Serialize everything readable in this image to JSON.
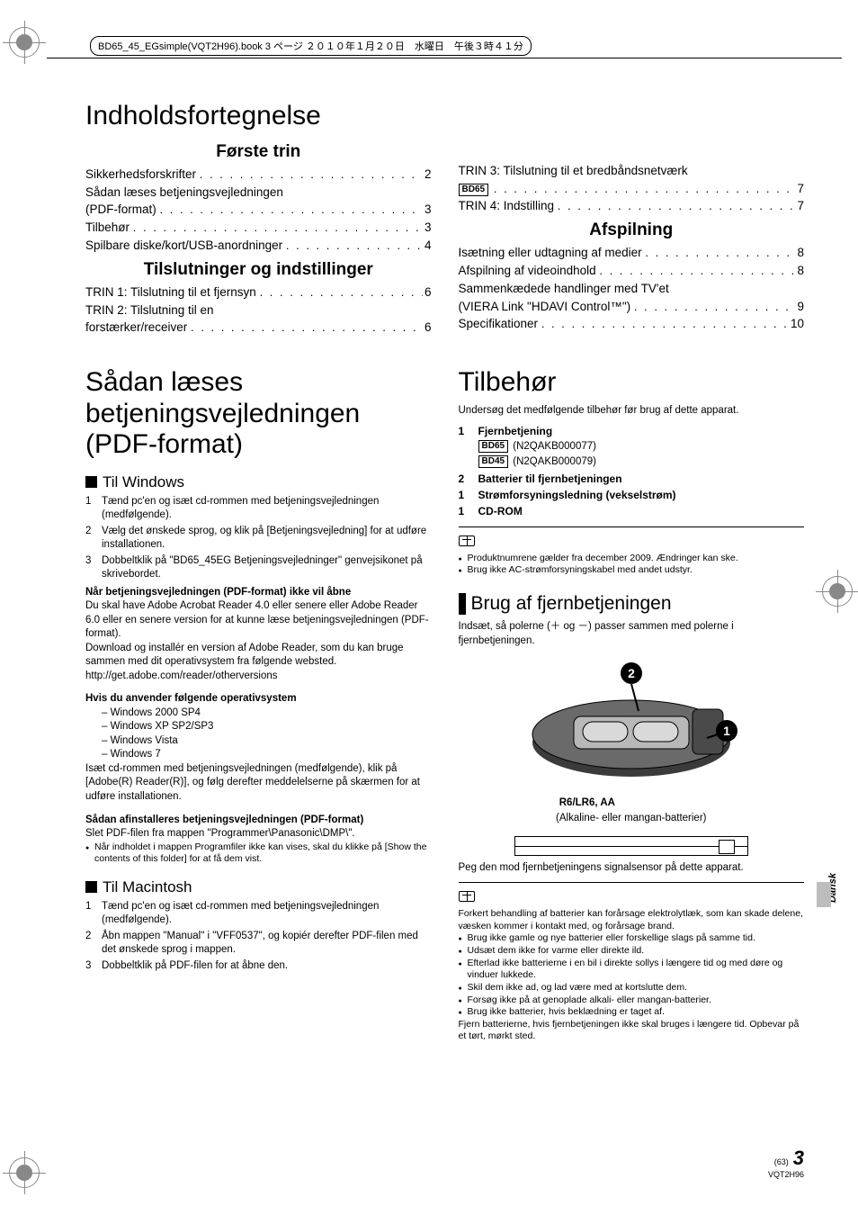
{
  "crop_header": "BD65_45_EGsimple(VQT2H96).book  3 ページ  ２０１０年１月２０日　水曜日　午後３時４１分",
  "main_title": "Indholdsfortegnelse",
  "toc": {
    "sec1_title": "Første trin",
    "sec1": [
      {
        "label": "Sikkerhedsforskrifter",
        "page": "2"
      },
      {
        "label_pre": "Sådan læses betjeningsvejledningen",
        "label": "(PDF-format)",
        "page": "3"
      },
      {
        "label": "Tilbehør",
        "page": "3"
      },
      {
        "label": "Spilbare diske/kort/USB-anordninger",
        "page": "4"
      }
    ],
    "sec2_title": "Tilslutninger og indstillinger",
    "sec2": [
      {
        "label": "TRIN 1: Tilslutning til et fjernsyn",
        "page": "6"
      },
      {
        "label_pre": "TRIN 2: Tilslutning til en",
        "label": "forstærker/receiver",
        "page": "6"
      },
      {
        "label": "TRIN 3: Tilslutning til et bredbåndsnetværk",
        "no_page": true
      },
      {
        "badge": "BD65",
        "label": "",
        "page": "7"
      },
      {
        "label": "TRIN 4: Indstilling",
        "page": "7"
      }
    ],
    "sec3_title": "Afspilning",
    "sec3": [
      {
        "label": "Isætning eller udtagning af medier",
        "page": "8"
      },
      {
        "label": "Afspilning af videoindhold",
        "page": "8"
      },
      {
        "label_pre": "Sammenkædede handlinger med TV'et",
        "label": "(VIERA Link \"HDAVI Control™\")",
        "page": "9"
      },
      {
        "label": "Specifikationer",
        "page": "10"
      }
    ]
  },
  "pdf": {
    "title1": "Sådan læses",
    "title2": "betjeningsvejledningen",
    "title3": "(PDF-format)",
    "win_heading": "Til Windows",
    "win_steps": [
      "Tænd pc'en og isæt cd-rommen med betjeningsvejledningen (medfølgende).",
      "Vælg det ønskede sprog, og klik på [Betjeningsvejledning] for at udføre installationen.",
      "Dobbeltklik på \"BD65_45EG Betjeningsvejledninger\" genvejsikonet på skrivebordet."
    ],
    "no_open_h": "Når betjeningsvejledningen (PDF-format) ikke vil åbne",
    "no_open_p1": "Du skal have Adobe Acrobat Reader 4.0 eller senere eller Adobe Reader 6.0 eller en senere version for at kunne læse betjeningsvejledningen (PDF-format).",
    "no_open_p2": "Download og installér en version af Adobe Reader, som du kan bruge sammen med dit operativsystem fra følgende websted.",
    "no_open_url": "http://get.adobe.com/reader/otherversions",
    "os_h": "Hvis du anvender følgende operativsystem",
    "os_list": [
      "Windows 2000 SP4",
      "Windows XP SP2/SP3",
      "Windows Vista",
      "Windows 7"
    ],
    "os_after": "Isæt cd-rommen med betjeningsvejledningen (medfølgende), klik på [Adobe(R) Reader(R)], og følg derefter meddelelserne på skærmen for at udføre installationen.",
    "uninstall_h": "Sådan afinstalleres betjeningsvejledningen (PDF-format)",
    "uninstall_p": "Slet PDF-filen fra mappen \"Programmer\\Panasonic\\DMP\\\".",
    "uninstall_bullet": "Når indholdet i mappen Programfiler ikke kan vises, skal du klikke på [Show the contents of this folder] for at få dem vist.",
    "mac_heading": "Til Macintosh",
    "mac_steps": [
      "Tænd pc'en og isæt cd-rommen med betjeningsvejledningen (medfølgende).",
      "Åbn mappen \"Manual\" i \"VFF0537\", og kopiér derefter PDF-filen med det ønskede sprog i mappen.",
      "Dobbeltklik på PDF-filen for at åbne den."
    ]
  },
  "acc": {
    "title": "Tilbehør",
    "intro": "Undersøg det medfølgende tilbehør før brug af dette apparat.",
    "items": [
      {
        "qty": "1",
        "name": "Fjernbetjening"
      },
      {
        "qty": "2",
        "name": "Batterier til fjernbetjeningen"
      },
      {
        "qty": "1",
        "name": "Strømforsyningsledning (vekselstrøm)"
      },
      {
        "qty": "1",
        "name": "CD-ROM"
      }
    ],
    "sub_bd65": "(N2QAKB000077)",
    "sub_bd45": "(N2QAKB000079)",
    "badge_bd65": "BD65",
    "badge_bd45": "BD45",
    "notes": [
      "Produktnumrene gælder fra december 2009. Ændringer kan ske.",
      "Brug ikke AC-strømforsyningskabel med andet udstyr."
    ]
  },
  "remote": {
    "title": "Brug af fjernbetjeningen",
    "intro": "Indsæt, så polerne (＋ og －) passer sammen med polerne i fjernbetjeningen.",
    "battery_label": "R6/LR6, AA",
    "battery_sub": "(Alkaline- eller mangan-batterier)",
    "point": "Peg den mod fjernbetjeningens signalsensor på dette apparat.",
    "warn_intro": "Forkert behandling af batterier kan forårsage elektrolytlæk, som kan skade delene, væsken kommer i kontakt med, og forårsage brand.",
    "warn_list": [
      "Brug ikke gamle og nye batterier eller forskellige slags på samme tid.",
      "Udsæt dem ikke for varme eller direkte ild.",
      "Efterlad ikke batterierne i en bil i direkte sollys i længere tid og med døre og vinduer lukkede.",
      "Skil dem ikke ad, og lad være med at kortslutte dem.",
      "Forsøg ikke på at genoplade alkali- eller mangan-batterier.",
      "Brug ikke batterier, hvis beklædning er taget af."
    ],
    "warn_out": "Fjern batterierne, hvis fjernbetjeningen ikke skal bruges i længere tid. Opbevar på et tørt, mørkt sted."
  },
  "side_label": "Dansk",
  "footer": {
    "aux": "(63)",
    "page": "3",
    "code": "VQT2H96"
  }
}
